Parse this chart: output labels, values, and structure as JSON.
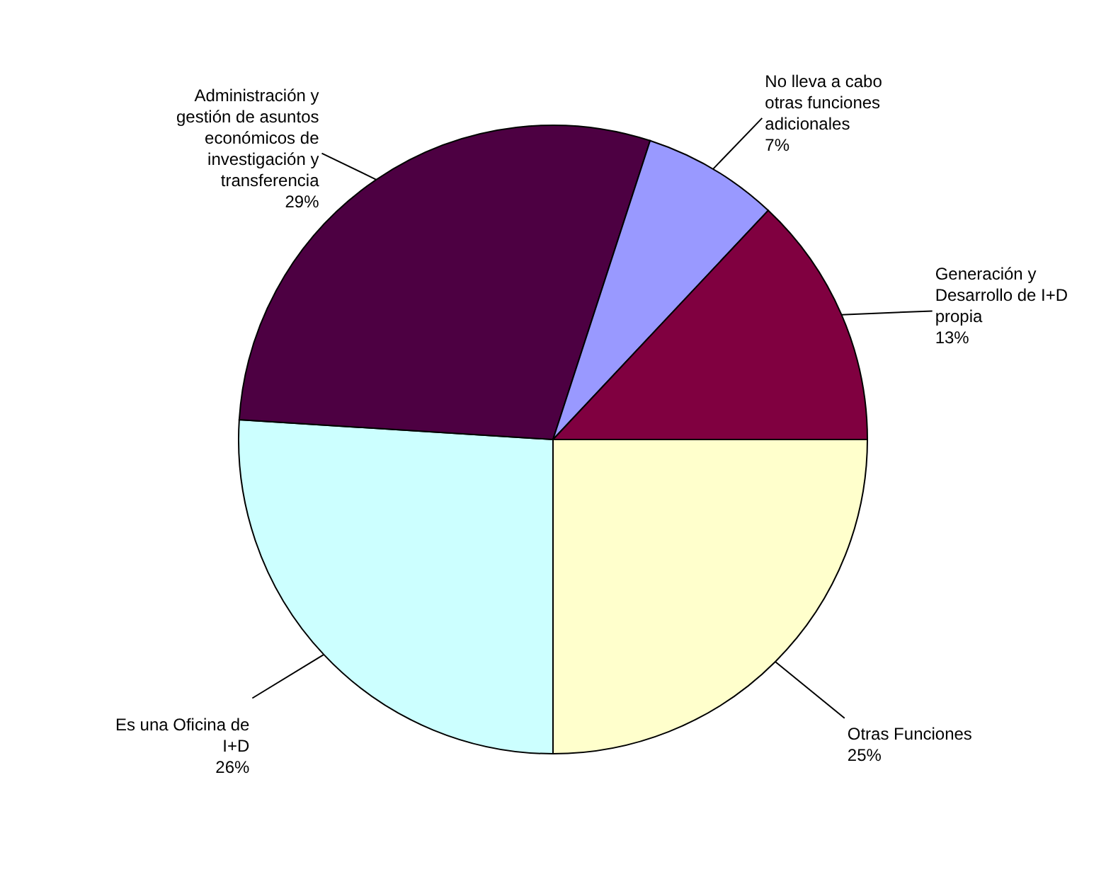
{
  "chart_data": {
    "type": "pie",
    "categories": [
      "Otras Funciones",
      "Es una Oficina de I+D",
      "Administración y gestión de asuntos económicos de investigación y transferencia",
      "No lleva a cabo otras funciones adicionales",
      "Generación y Desarrollo de I+D propia"
    ],
    "values": [
      25,
      26,
      29,
      7,
      13
    ],
    "value_labels": [
      "25%",
      "26%",
      "29%",
      "7%",
      "13%"
    ],
    "colors": [
      "#ffffcc",
      "#ccffff",
      "#4d0042",
      "#9999ff",
      "#800040"
    ]
  }
}
